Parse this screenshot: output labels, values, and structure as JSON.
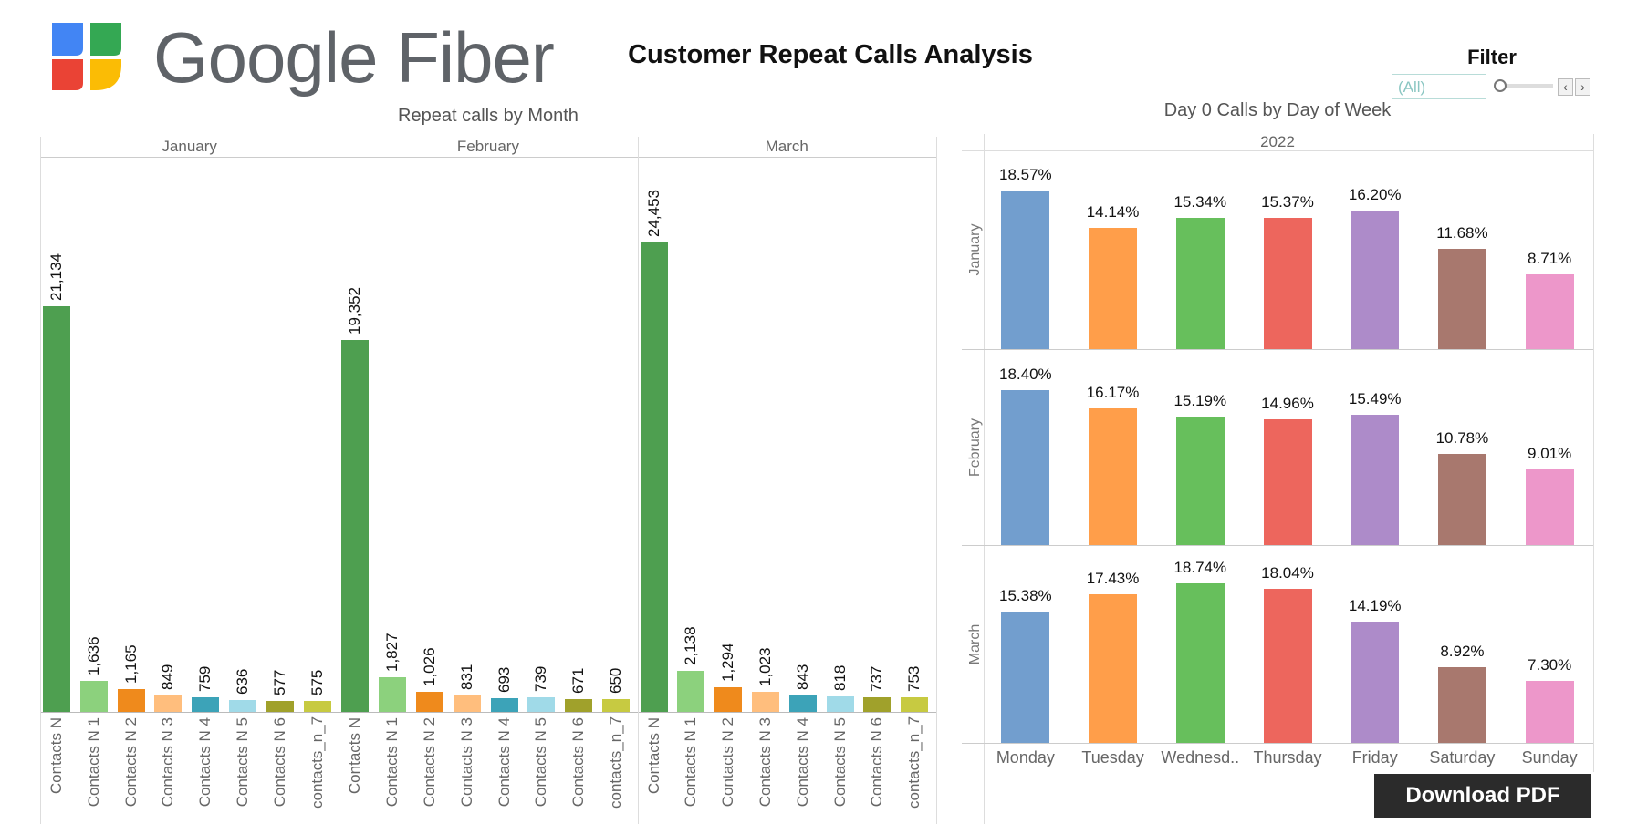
{
  "header": {
    "logo_text": "Google Fiber",
    "logo_colors": [
      "#4285F4",
      "#34A853",
      "#EA4335",
      "#FBBC05"
    ],
    "title": "Customer Repeat Calls Analysis"
  },
  "filter": {
    "label": "Filter",
    "value": "(All)",
    "prev_icon": "chevron-left-icon",
    "next_icon": "chevron-right-icon"
  },
  "download_label": "Download PDF",
  "chart_data": [
    {
      "type": "bar",
      "title": "Repeat calls by Month",
      "panels": [
        "January",
        "February",
        "March"
      ],
      "categories": [
        "Contacts N",
        "Contacts N 1",
        "Contacts N 2",
        "Contacts N 3",
        "Contacts N 4",
        "Contacts N 5",
        "Contacts N 6",
        "contacts_n_7"
      ],
      "colors": [
        "#4E9F50",
        "#8CD17D",
        "#EF8A1C",
        "#FFBE7D",
        "#3CA3B8",
        "#A0DAE8",
        "#A0A12B",
        "#C7CA41"
      ],
      "series": [
        {
          "name": "January",
          "values": [
            21134,
            1636,
            1165,
            849,
            759,
            636,
            577,
            575
          ],
          "labels": [
            "21,134",
            "1,636",
            "1,165",
            "849",
            "759",
            "636",
            "577",
            "575"
          ]
        },
        {
          "name": "February",
          "values": [
            19352,
            1827,
            1026,
            831,
            693,
            739,
            671,
            650
          ],
          "labels": [
            "19,352",
            "1,827",
            "1,026",
            "831",
            "693",
            "739",
            "671",
            "650"
          ]
        },
        {
          "name": "March",
          "values": [
            24453,
            2138,
            1294,
            1023,
            843,
            818,
            737,
            753
          ],
          "labels": [
            "24,453",
            "2,138",
            "1,294",
            "1,023",
            "843",
            "818",
            "737",
            "753"
          ]
        }
      ],
      "ylim": [
        0,
        28900
      ],
      "grid": false
    },
    {
      "type": "bar",
      "title": "Day 0 Calls by Day of Week",
      "column_header": "2022",
      "categories": [
        "Monday",
        "Tuesday",
        "Wednesd..",
        "Thursday",
        "Friday",
        "Saturday",
        "Sunday"
      ],
      "colors": [
        "#729ECE",
        "#FF9E4A",
        "#67BF5C",
        "#ED665D",
        "#AD8BC9",
        "#A8786E",
        "#ED97CA"
      ],
      "series": [
        {
          "name": "January",
          "values": [
            18.57,
            14.14,
            15.34,
            15.37,
            16.2,
            11.68,
            8.71
          ],
          "labels": [
            "18.57%",
            "14.14%",
            "15.34%",
            "15.37%",
            "16.20%",
            "11.68%",
            "8.71%"
          ]
        },
        {
          "name": "February",
          "values": [
            18.4,
            16.17,
            15.19,
            14.96,
            15.49,
            10.78,
            9.01
          ],
          "labels": [
            "18.40%",
            "16.17%",
            "15.19%",
            "14.96%",
            "15.49%",
            "10.78%",
            "9.01%"
          ]
        },
        {
          "name": "March",
          "values": [
            15.38,
            17.43,
            18.74,
            18.04,
            14.19,
            8.92,
            7.3
          ],
          "labels": [
            "15.38%",
            "17.43%",
            "18.74%",
            "18.04%",
            "14.19%",
            "8.92%",
            "7.30%"
          ]
        }
      ],
      "ylim": [
        0,
        22.8
      ],
      "grid": false
    }
  ]
}
